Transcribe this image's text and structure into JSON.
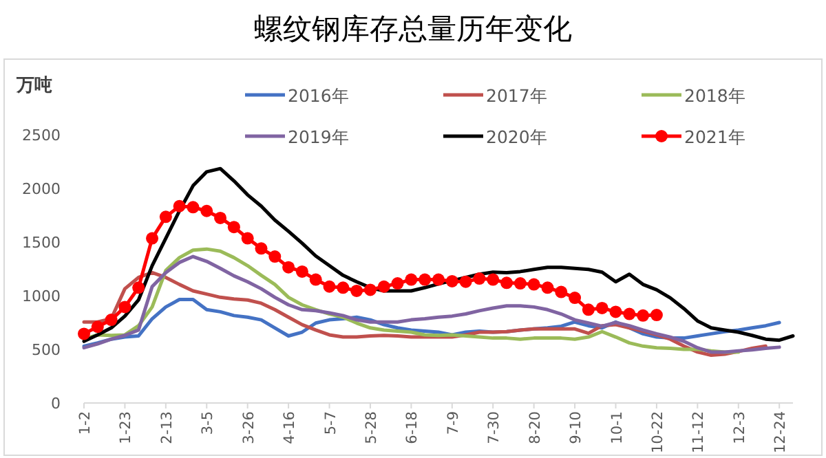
{
  "chart_data": {
    "type": "line",
    "title": "螺纹钢库存总量历年变化",
    "ylabel": "万吨",
    "categories": [
      "1-2",
      null,
      null,
      "1-23",
      null,
      null,
      "2-13",
      null,
      null,
      "3-5",
      null,
      null,
      "3-26",
      null,
      null,
      "4-16",
      null,
      null,
      "5-7",
      null,
      null,
      "5-28",
      null,
      null,
      "6-18",
      null,
      null,
      "7-9",
      null,
      null,
      "7-30",
      null,
      null,
      "8-20",
      null,
      null,
      "9-10",
      null,
      null,
      "10-1",
      null,
      null,
      "10-22",
      null,
      null,
      "11-12",
      null,
      null,
      "12-3",
      null,
      null,
      "12-24",
      null
    ],
    "ylim": [
      0,
      2500
    ],
    "yticks": [
      0,
      500,
      1000,
      1500,
      2000,
      2500
    ],
    "legend": "top",
    "line_style": "solid",
    "series": [
      {
        "name": "2016年",
        "color": "#4472c4",
        "marker": "none",
        "values": [
          530,
          560,
          595,
          615,
          625,
          785,
          895,
          965,
          965,
          870,
          850,
          815,
          800,
          775,
          700,
          625,
          660,
          745,
          775,
          785,
          800,
          775,
          730,
          700,
          680,
          670,
          660,
          635,
          660,
          670,
          660,
          665,
          680,
          690,
          700,
          715,
          755,
          720,
          700,
          755,
          700,
          645,
          615,
          605,
          605,
          625,
          645,
          665,
          680,
          700,
          720,
          750,
          null
        ]
      },
      {
        "name": "2017年",
        "color": "#c0504d",
        "marker": "none",
        "values": [
          755,
          755,
          785,
          1065,
          1170,
          1215,
          1170,
          1105,
          1045,
          1015,
          985,
          970,
          960,
          930,
          870,
          800,
          730,
          680,
          635,
          615,
          615,
          625,
          630,
          625,
          615,
          615,
          615,
          615,
          635,
          660,
          660,
          665,
          680,
          690,
          690,
          690,
          690,
          650,
          720,
          730,
          700,
          670,
          635,
          595,
          530,
          475,
          445,
          455,
          480,
          510,
          530,
          null,
          null
        ]
      },
      {
        "name": "2018年",
        "color": "#9bbb59",
        "marker": "none",
        "values": [
          595,
          635,
          630,
          635,
          720,
          895,
          1235,
          1355,
          1425,
          1435,
          1415,
          1355,
          1280,
          1190,
          1105,
          985,
          915,
          870,
          830,
          800,
          745,
          700,
          680,
          670,
          660,
          635,
          630,
          635,
          625,
          615,
          605,
          605,
          595,
          605,
          605,
          605,
          595,
          615,
          665,
          615,
          560,
          530,
          515,
          510,
          500,
          500,
          485,
          475,
          475,
          null,
          null,
          null,
          null
        ]
      },
      {
        "name": "2019年",
        "color": "#8064a2",
        "marker": "none",
        "values": [
          515,
          550,
          595,
          630,
          680,
          1085,
          1215,
          1310,
          1365,
          1320,
          1255,
          1185,
          1130,
          1065,
          985,
          915,
          870,
          860,
          840,
          815,
          775,
          755,
          755,
          755,
          775,
          785,
          800,
          810,
          830,
          860,
          885,
          905,
          905,
          895,
          870,
          830,
          775,
          745,
          715,
          750,
          720,
          680,
          645,
          615,
          575,
          515,
          475,
          475,
          485,
          495,
          510,
          520,
          null
        ]
      },
      {
        "name": "2020年",
        "color": "#000000",
        "marker": "none",
        "values": [
          575,
          635,
          700,
          810,
          960,
          1280,
          1535,
          1790,
          2025,
          2155,
          2185,
          2070,
          1940,
          1835,
          1705,
          1600,
          1490,
          1370,
          1280,
          1190,
          1130,
          1075,
          1045,
          1045,
          1045,
          1075,
          1110,
          1140,
          1170,
          1200,
          1220,
          1215,
          1225,
          1245,
          1265,
          1265,
          1255,
          1245,
          1220,
          1130,
          1200,
          1105,
          1055,
          980,
          880,
          765,
          700,
          680,
          660,
          630,
          595,
          585,
          625
        ]
      },
      {
        "name": "2021年",
        "color": "#ff0000",
        "marker": "circle",
        "values": [
          645,
          710,
          775,
          895,
          1075,
          1535,
          1735,
          1835,
          1825,
          1790,
          1725,
          1640,
          1535,
          1440,
          1365,
          1265,
          1225,
          1150,
          1085,
          1075,
          1045,
          1055,
          1085,
          1115,
          1150,
          1150,
          1150,
          1135,
          1130,
          1160,
          1150,
          1120,
          1115,
          1105,
          1075,
          1035,
          980,
          870,
          885,
          850,
          830,
          815,
          820,
          null,
          null,
          null,
          null,
          null,
          null,
          null,
          null,
          null,
          null
        ]
      }
    ]
  }
}
